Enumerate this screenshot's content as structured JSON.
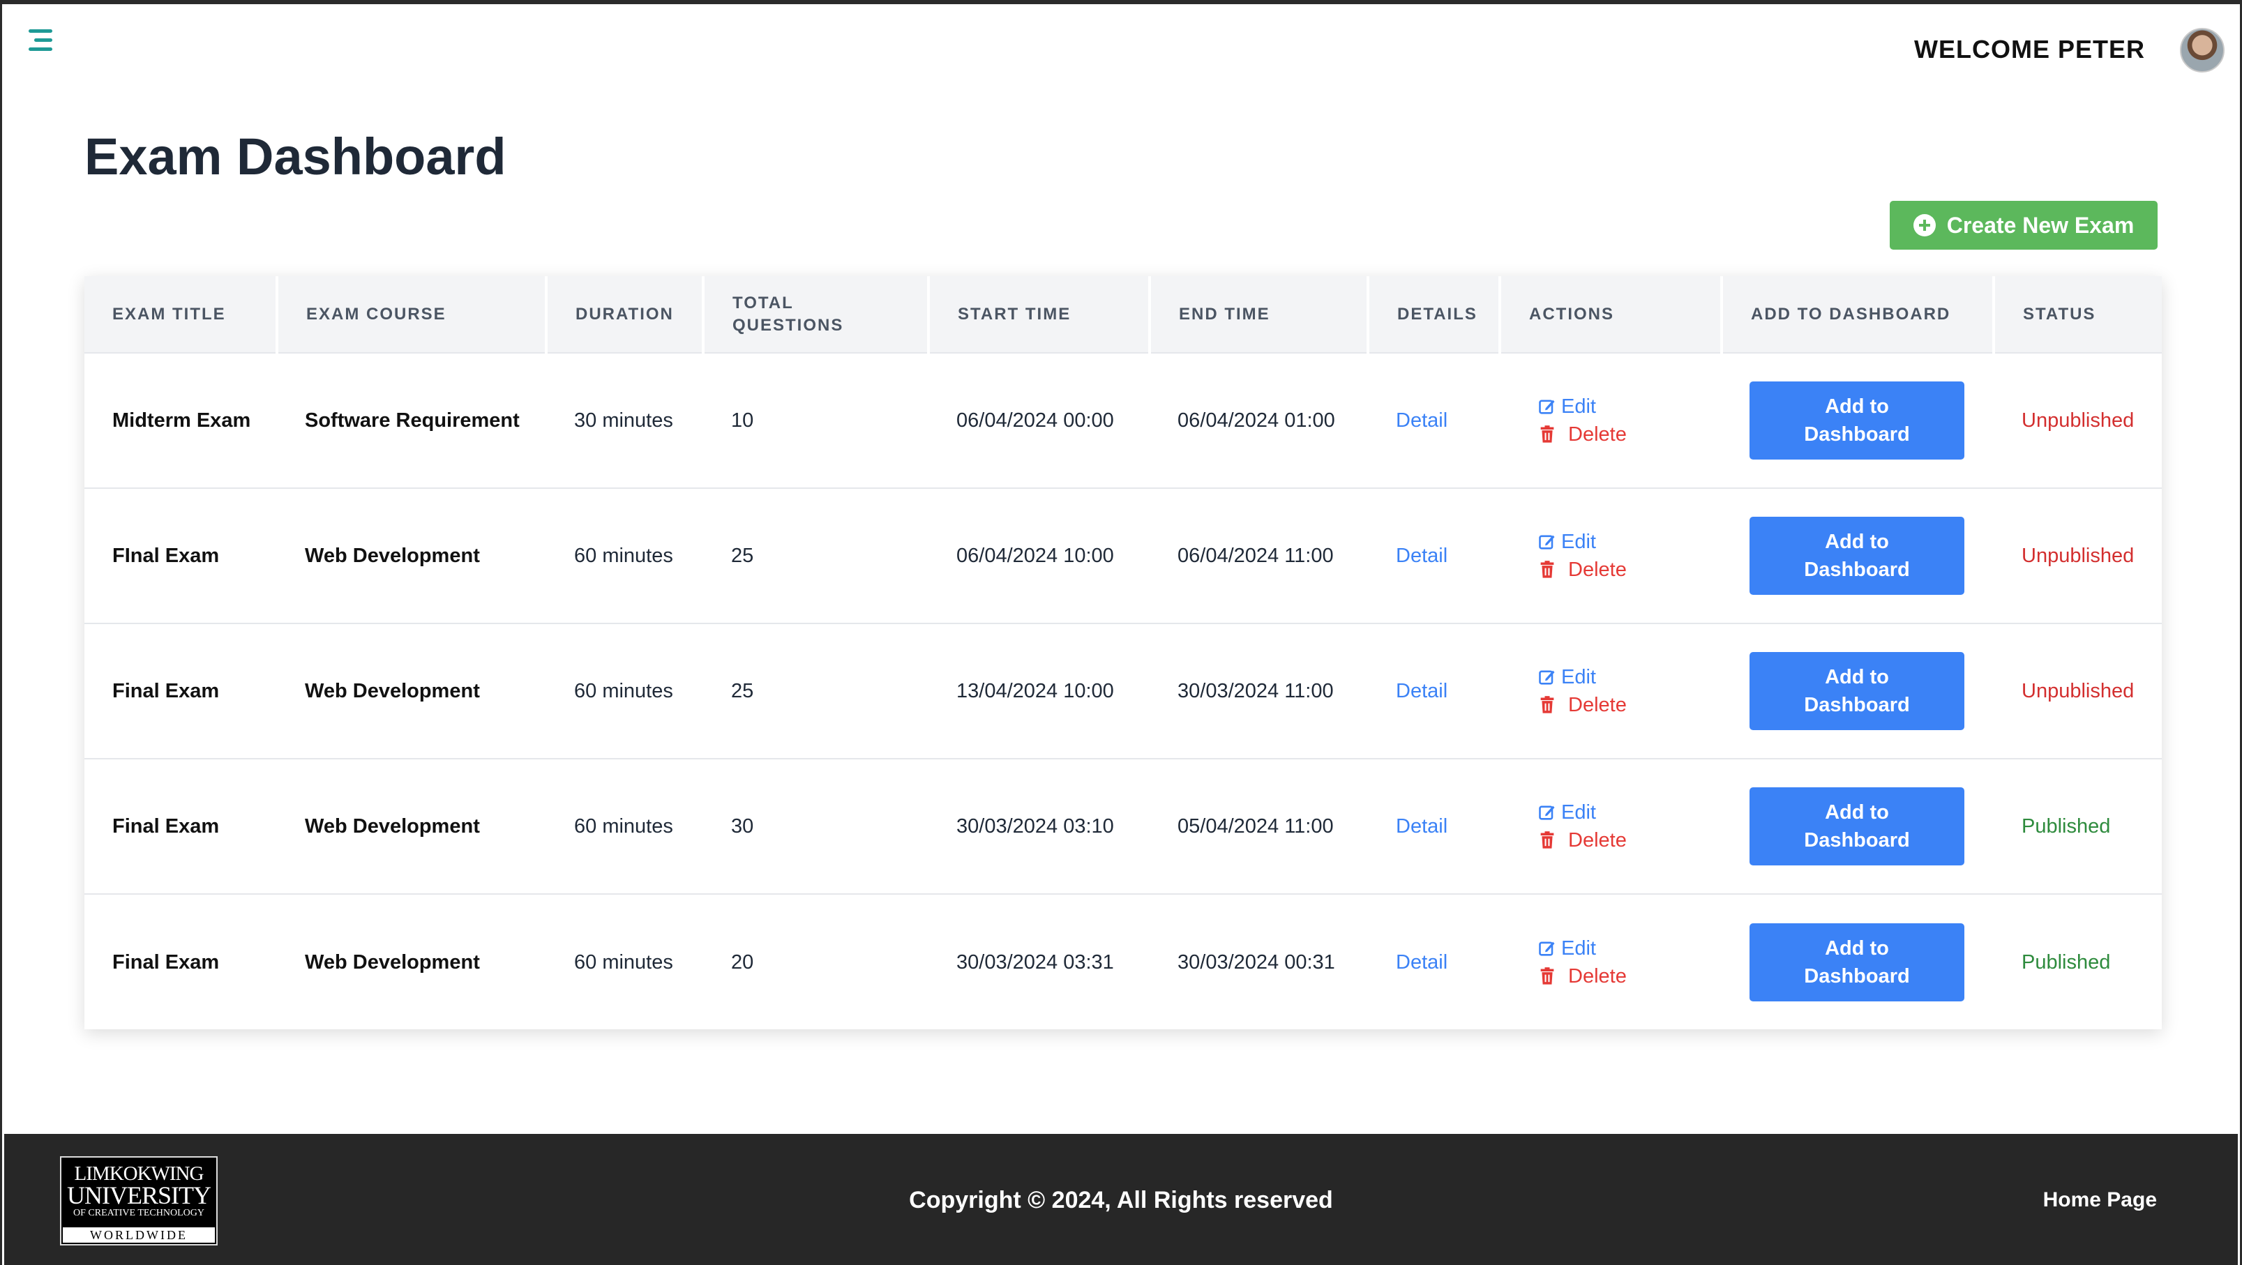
{
  "header": {
    "welcome_text": "WELCOME PETER",
    "menu_icon": "hamburger-menu-icon",
    "avatar_icon": "user-avatar"
  },
  "page": {
    "title": "Exam Dashboard",
    "create_button_label": "Create New Exam"
  },
  "table": {
    "columns": [
      "EXAM TITLE",
      "EXAM COURSE",
      "DURATION",
      "TOTAL QUESTIONS",
      "START TIME",
      "END TIME",
      "DETAILS",
      "ACTIONS",
      "ADD TO DASHBOARD",
      "STATUS"
    ],
    "rows": [
      {
        "title": "Midterm Exam",
        "course": "Software Requirement",
        "duration": "30 minutes",
        "questions": "10",
        "start": "06/04/2024 00:00",
        "end": "06/04/2024 01:00",
        "detail": "Detail",
        "edit": "Edit",
        "delete": "Delete",
        "dashboard": "Add to Dashboard",
        "status": "Unpublished"
      },
      {
        "title": "FInal Exam",
        "course": "Web Development",
        "duration": "60 minutes",
        "questions": "25",
        "start": "06/04/2024 10:00",
        "end": "06/04/2024 11:00",
        "detail": "Detail",
        "edit": "Edit",
        "delete": "Delete",
        "dashboard": "Add to Dashboard",
        "status": "Unpublished"
      },
      {
        "title": "Final Exam",
        "course": "Web Development",
        "duration": "60 minutes",
        "questions": "25",
        "start": "13/04/2024 10:00",
        "end": "30/03/2024 11:00",
        "detail": "Detail",
        "edit": "Edit",
        "delete": "Delete",
        "dashboard": "Add to Dashboard",
        "status": "Unpublished"
      },
      {
        "title": "Final Exam",
        "course": "Web Development",
        "duration": "60 minutes",
        "questions": "30",
        "start": "30/03/2024 03:10",
        "end": "05/04/2024 11:00",
        "detail": "Detail",
        "edit": "Edit",
        "delete": "Delete",
        "dashboard": "Add to Dashboard",
        "status": "Published"
      },
      {
        "title": "Final Exam",
        "course": "Web Development",
        "duration": "60 minutes",
        "questions": "20",
        "start": "30/03/2024 03:31",
        "end": "30/03/2024 00:31",
        "detail": "Detail",
        "edit": "Edit",
        "delete": "Delete",
        "dashboard": "Add to Dashboard",
        "status": "Published"
      }
    ]
  },
  "footer": {
    "logo_lines": [
      "LIMKOKWING",
      "UNIVERSITY",
      "OF CREATIVE TECHNOLOGY",
      "WORLDWIDE"
    ],
    "copyright": "Copyright © 2024, All Rights reserved",
    "home_link": "Home Page"
  },
  "colors": {
    "accent_green": "#5cb85c",
    "primary_blue": "#3b82f6",
    "danger_red": "#d32f2f",
    "success_green": "#2e8b3d",
    "menu_teal": "#1e9a96",
    "footer_bg": "#272727"
  }
}
